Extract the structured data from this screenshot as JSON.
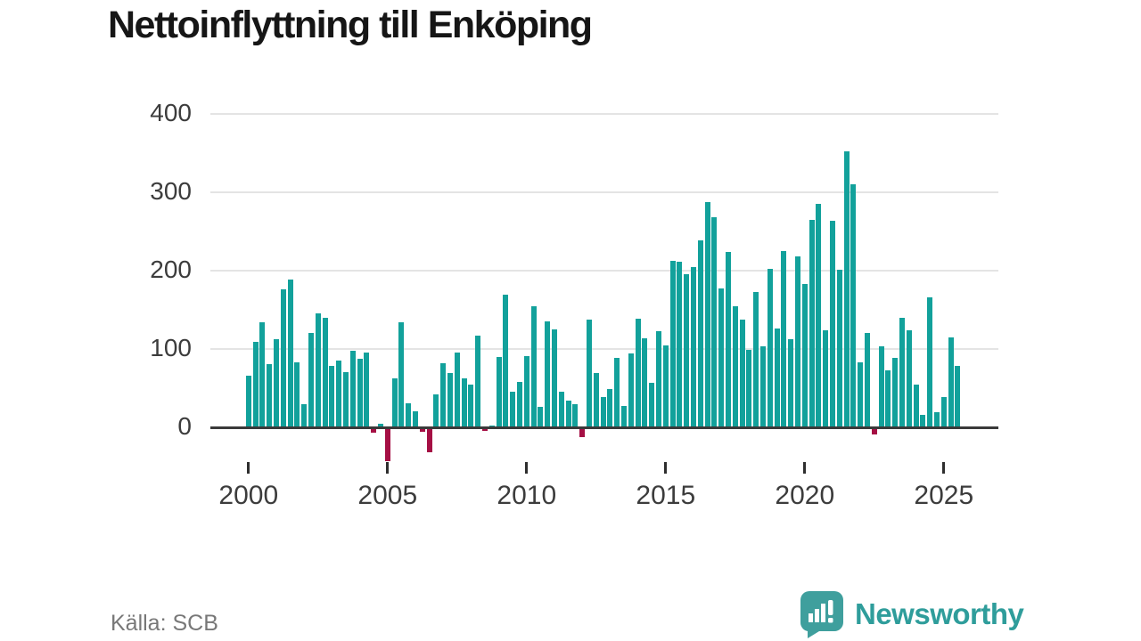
{
  "header": {
    "title": "Nettoinflyttning till Enköping"
  },
  "footer": {
    "source": "Källa: SCB",
    "brand": "Newsworthy"
  },
  "chart_data": {
    "type": "bar",
    "title": "Nettoinflyttning till Enköping",
    "xlabel": "",
    "ylabel": "",
    "x_unit": "quarter",
    "grid": true,
    "legend_position": "none",
    "ylim": [
      -60,
      400
    ],
    "yticks": [
      0,
      100,
      200,
      300,
      400
    ],
    "ytick_labels": [
      "0",
      "100",
      "200",
      "300",
      "400"
    ],
    "xticks": [
      2000,
      2005,
      2010,
      2015,
      2020,
      2025
    ],
    "xtick_labels": [
      "2000",
      "2005",
      "2010",
      "2015",
      "2020",
      "2025"
    ],
    "positive_color": "#12a19b",
    "negative_color": "#a50f44",
    "categories": [
      "2000 Q1",
      "2000 Q2",
      "2000 Q3",
      "2000 Q4",
      "2001 Q1",
      "2001 Q2",
      "2001 Q3",
      "2001 Q4",
      "2002 Q1",
      "2002 Q2",
      "2002 Q3",
      "2002 Q4",
      "2003 Q1",
      "2003 Q2",
      "2003 Q3",
      "2003 Q4",
      "2004 Q1",
      "2004 Q2",
      "2004 Q3",
      "2004 Q4",
      "2005 Q1",
      "2005 Q2",
      "2005 Q3",
      "2005 Q4",
      "2006 Q1",
      "2006 Q2",
      "2006 Q3",
      "2006 Q4",
      "2007 Q1",
      "2007 Q2",
      "2007 Q3",
      "2007 Q4",
      "2008 Q1",
      "2008 Q2",
      "2008 Q3",
      "2008 Q4",
      "2009 Q1",
      "2009 Q2",
      "2009 Q3",
      "2009 Q4",
      "2010 Q1",
      "2010 Q2",
      "2010 Q3",
      "2010 Q4",
      "2011 Q1",
      "2011 Q2",
      "2011 Q3",
      "2011 Q4",
      "2012 Q1",
      "2012 Q2",
      "2012 Q3",
      "2012 Q4",
      "2013 Q1",
      "2013 Q2",
      "2013 Q3",
      "2013 Q4",
      "2014 Q1",
      "2014 Q2",
      "2014 Q3",
      "2014 Q4",
      "2015 Q1",
      "2015 Q2",
      "2015 Q3",
      "2015 Q4",
      "2016 Q1",
      "2016 Q2",
      "2016 Q3",
      "2016 Q4",
      "2017 Q1",
      "2017 Q2",
      "2017 Q3",
      "2017 Q4",
      "2018 Q1",
      "2018 Q2",
      "2018 Q3",
      "2018 Q4",
      "2019 Q1",
      "2019 Q2",
      "2019 Q3",
      "2019 Q4",
      "2020 Q1",
      "2020 Q2",
      "2020 Q3",
      "2020 Q4",
      "2021 Q1",
      "2021 Q2",
      "2021 Q3",
      "2021 Q4",
      "2022 Q1",
      "2022 Q2",
      "2022 Q3",
      "2022 Q4",
      "2023 Q1",
      "2023 Q2",
      "2023 Q3",
      "2023 Q4",
      "2024 Q1",
      "2024 Q2",
      "2024 Q3",
      "2024 Q4",
      "2025 Q1",
      "2025 Q2",
      "2025 Q3"
    ],
    "values": [
      66,
      109,
      134,
      81,
      112,
      176,
      189,
      83,
      29,
      121,
      145,
      140,
      78,
      85,
      71,
      98,
      88,
      95,
      -7,
      5,
      -43,
      63,
      134,
      31,
      20,
      -6,
      -32,
      42,
      82,
      69,
      96,
      63,
      55,
      117,
      -4,
      2,
      90,
      169,
      45,
      58,
      91,
      154,
      26,
      135,
      125,
      45,
      34,
      30,
      -13,
      137,
      69,
      39,
      49,
      89,
      27,
      94,
      139,
      114,
      57,
      123,
      105,
      212,
      211,
      196,
      205,
      239,
      287,
      268,
      177,
      224,
      155,
      137,
      99,
      173,
      103,
      202,
      126,
      225,
      112,
      218,
      183,
      265,
      285,
      124,
      264,
      201,
      352,
      310,
      83,
      120,
      -9,
      103,
      73,
      89,
      140,
      124,
      55,
      16,
      166,
      19,
      39,
      115,
      78
    ]
  }
}
